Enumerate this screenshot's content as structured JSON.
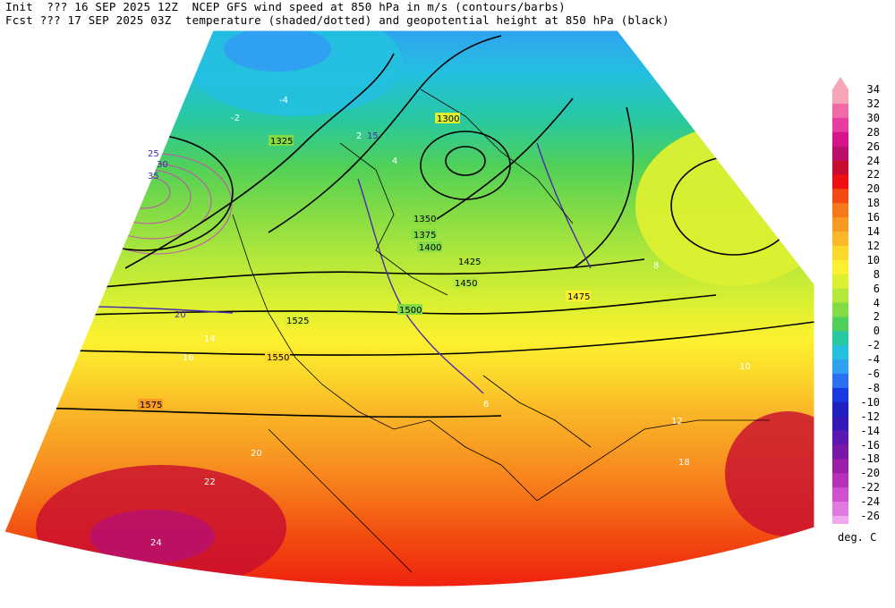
{
  "header": {
    "line1_left": "Init  ??? 16 SEP 2025 12Z",
    "line1_right": "NCEP GFS wind speed at 850 hPa in m/s (contours/barbs)",
    "line2_left": "Fcst ??? 17 SEP 2025 03Z",
    "line2_right": "temperature (shaded/dotted) and geopotential height at 850 hPa (black)"
  },
  "colorbar": {
    "units": "deg. C",
    "levels": [
      "34",
      "32",
      "30",
      "28",
      "26",
      "24",
      "22",
      "20",
      "18",
      "16",
      "14",
      "12",
      "10",
      "8",
      "6",
      "4",
      "2",
      "0",
      "-2",
      "-4",
      "-6",
      "-8",
      "-10",
      "-12",
      "-14",
      "-16",
      "-18",
      "-20",
      "-22",
      "-24",
      "-26"
    ],
    "colors": [
      "#f7a6b8",
      "#f06aa8",
      "#e83ca0",
      "#d8148c",
      "#b8106c",
      "#c80c30",
      "#ee1010",
      "#f24a10",
      "#f6781a",
      "#f89a22",
      "#fab828",
      "#fcd82a",
      "#fef030",
      "#dcf030",
      "#b4e83a",
      "#84dc44",
      "#50d058",
      "#28c8a0",
      "#24c0e0",
      "#30a0f0",
      "#2a70f0",
      "#1838e0",
      "#2020c0",
      "#3418b8",
      "#5a18b0",
      "#7818a8",
      "#9a20a8",
      "#b830b8",
      "#d050d0",
      "#e078e0",
      "#f0a8f0"
    ],
    "top_arrow_color": "#f7a6b8"
  },
  "map": {
    "land_border_color": "#000000",
    "height_contour_color": "#000000",
    "wind_contour_color": "#4a2ab0",
    "height_labels": [
      "1300",
      "1325",
      "1350",
      "1375",
      "1400",
      "1425",
      "1450",
      "1475",
      "1500",
      "1525",
      "1550",
      "1575"
    ],
    "temp_labels": [
      "-4",
      "-2",
      "2",
      "4",
      "6",
      "8",
      "10",
      "12",
      "14",
      "16",
      "18",
      "20",
      "22",
      "24"
    ],
    "wind_labels": [
      "15",
      "20",
      "25",
      "30",
      "35"
    ]
  }
}
